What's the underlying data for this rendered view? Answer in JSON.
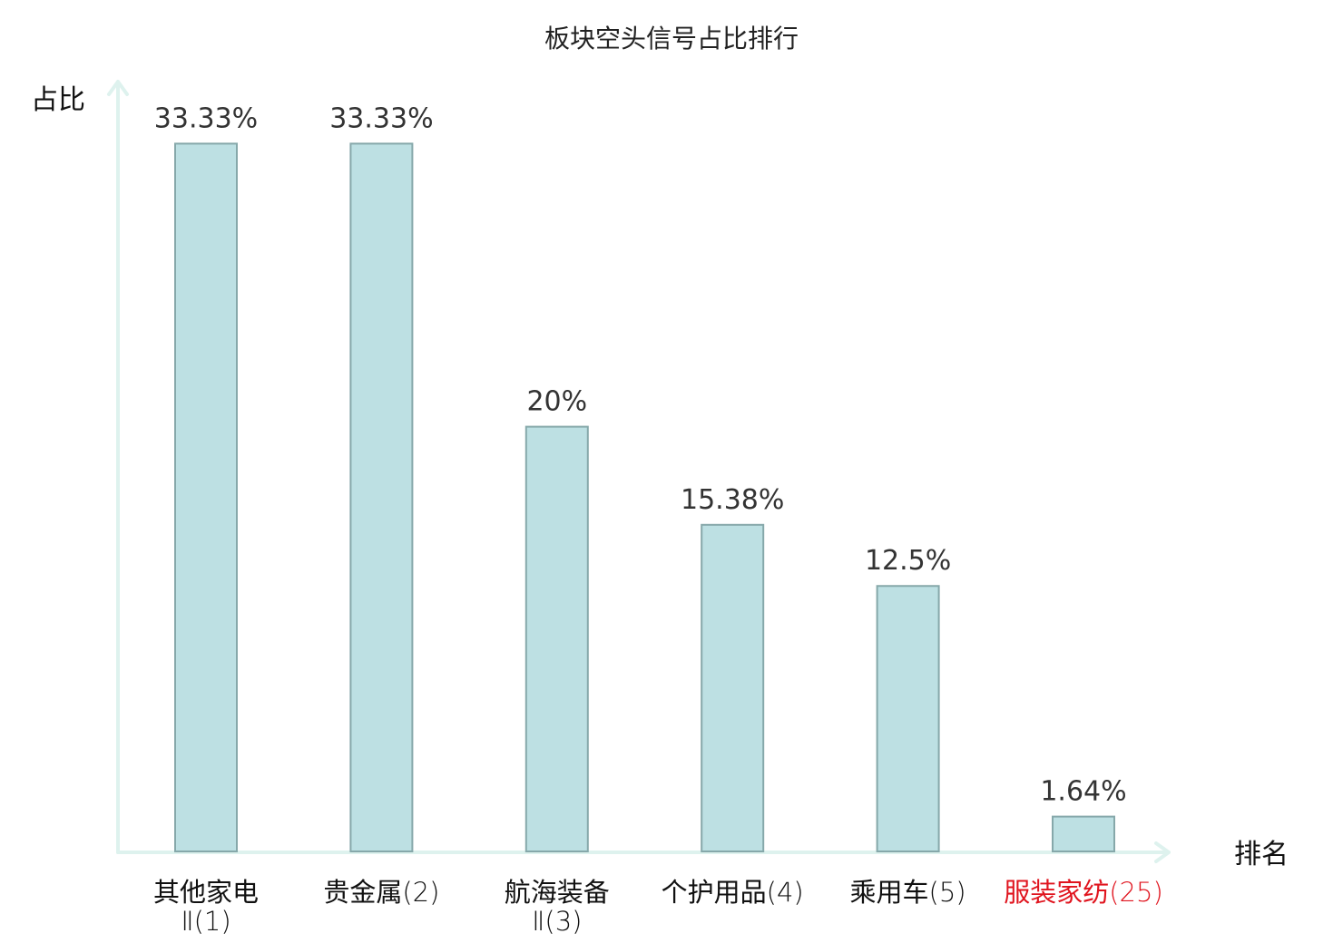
{
  "chart_data": {
    "type": "bar",
    "title": "板块空头信号占比排行",
    "ylabel": "占比",
    "xlabel": "排名",
    "ylim": [
      0,
      34.5
    ],
    "grid": false,
    "categories": [
      {
        "name": "其他家电",
        "name2": "Ⅱ",
        "rank": "(1)",
        "value": 33.33,
        "value_label": "33.33%",
        "highlight": false
      },
      {
        "name": "贵金属",
        "name2": "",
        "rank": "(2)",
        "value": 33.33,
        "value_label": "33.33%",
        "highlight": false
      },
      {
        "name": "航海装备",
        "name2": "Ⅱ",
        "rank": "(3)",
        "value": 20,
        "value_label": "20%",
        "highlight": false
      },
      {
        "name": "个护用品",
        "name2": "",
        "rank": "(4)",
        "value": 15.38,
        "value_label": "15.38%",
        "highlight": false
      },
      {
        "name": "乘用车",
        "name2": "",
        "rank": "(5)",
        "value": 12.5,
        "value_label": "12.5%",
        "highlight": false
      },
      {
        "name": "服装家纺",
        "name2": "",
        "rank": "(25)",
        "value": 1.64,
        "value_label": "1.64%",
        "highlight": true
      }
    ],
    "colors": {
      "bar_fill": "#bde0e3",
      "bar_stroke": "#86a8aa",
      "axis": "#def2ee",
      "label_default": "#111111",
      "label_highlight": "#e0141e"
    }
  }
}
